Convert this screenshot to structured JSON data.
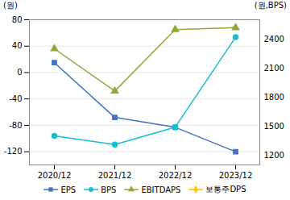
{
  "chart_data": {
    "type": "line",
    "categories": [
      "2020/12",
      "2021/12",
      "2022/12",
      "2023/12"
    ],
    "ylabel": "(원)",
    "y2label": "(원,BPS)",
    "ylim": [
      -140,
      80
    ],
    "yticks": [
      -120,
      -80,
      -40,
      0,
      40,
      80
    ],
    "y2lim": [
      1100,
      2600
    ],
    "y2ticks": [
      1200,
      1500,
      1800,
      2100,
      2400
    ],
    "grid": true,
    "legend": "bottom",
    "series": [
      {
        "name": "EPS",
        "color": "#4472C4",
        "marker": "square",
        "values": [
          15,
          -68,
          -83,
          -120
        ]
      },
      {
        "name": "BPS",
        "color": "#17BECF",
        "marker": "circle",
        "axis": "y2",
        "values": [
          1400,
          1310,
          1490,
          2420
        ]
      },
      {
        "name": "EBITDAPS",
        "color": "#8EAA3B",
        "marker": "triangle",
        "values": [
          36,
          -28,
          65,
          68
        ]
      },
      {
        "name": "보통주DPS",
        "color": "#FFC000",
        "marker": "diamond",
        "values": [
          null,
          null,
          null,
          null
        ]
      }
    ]
  }
}
